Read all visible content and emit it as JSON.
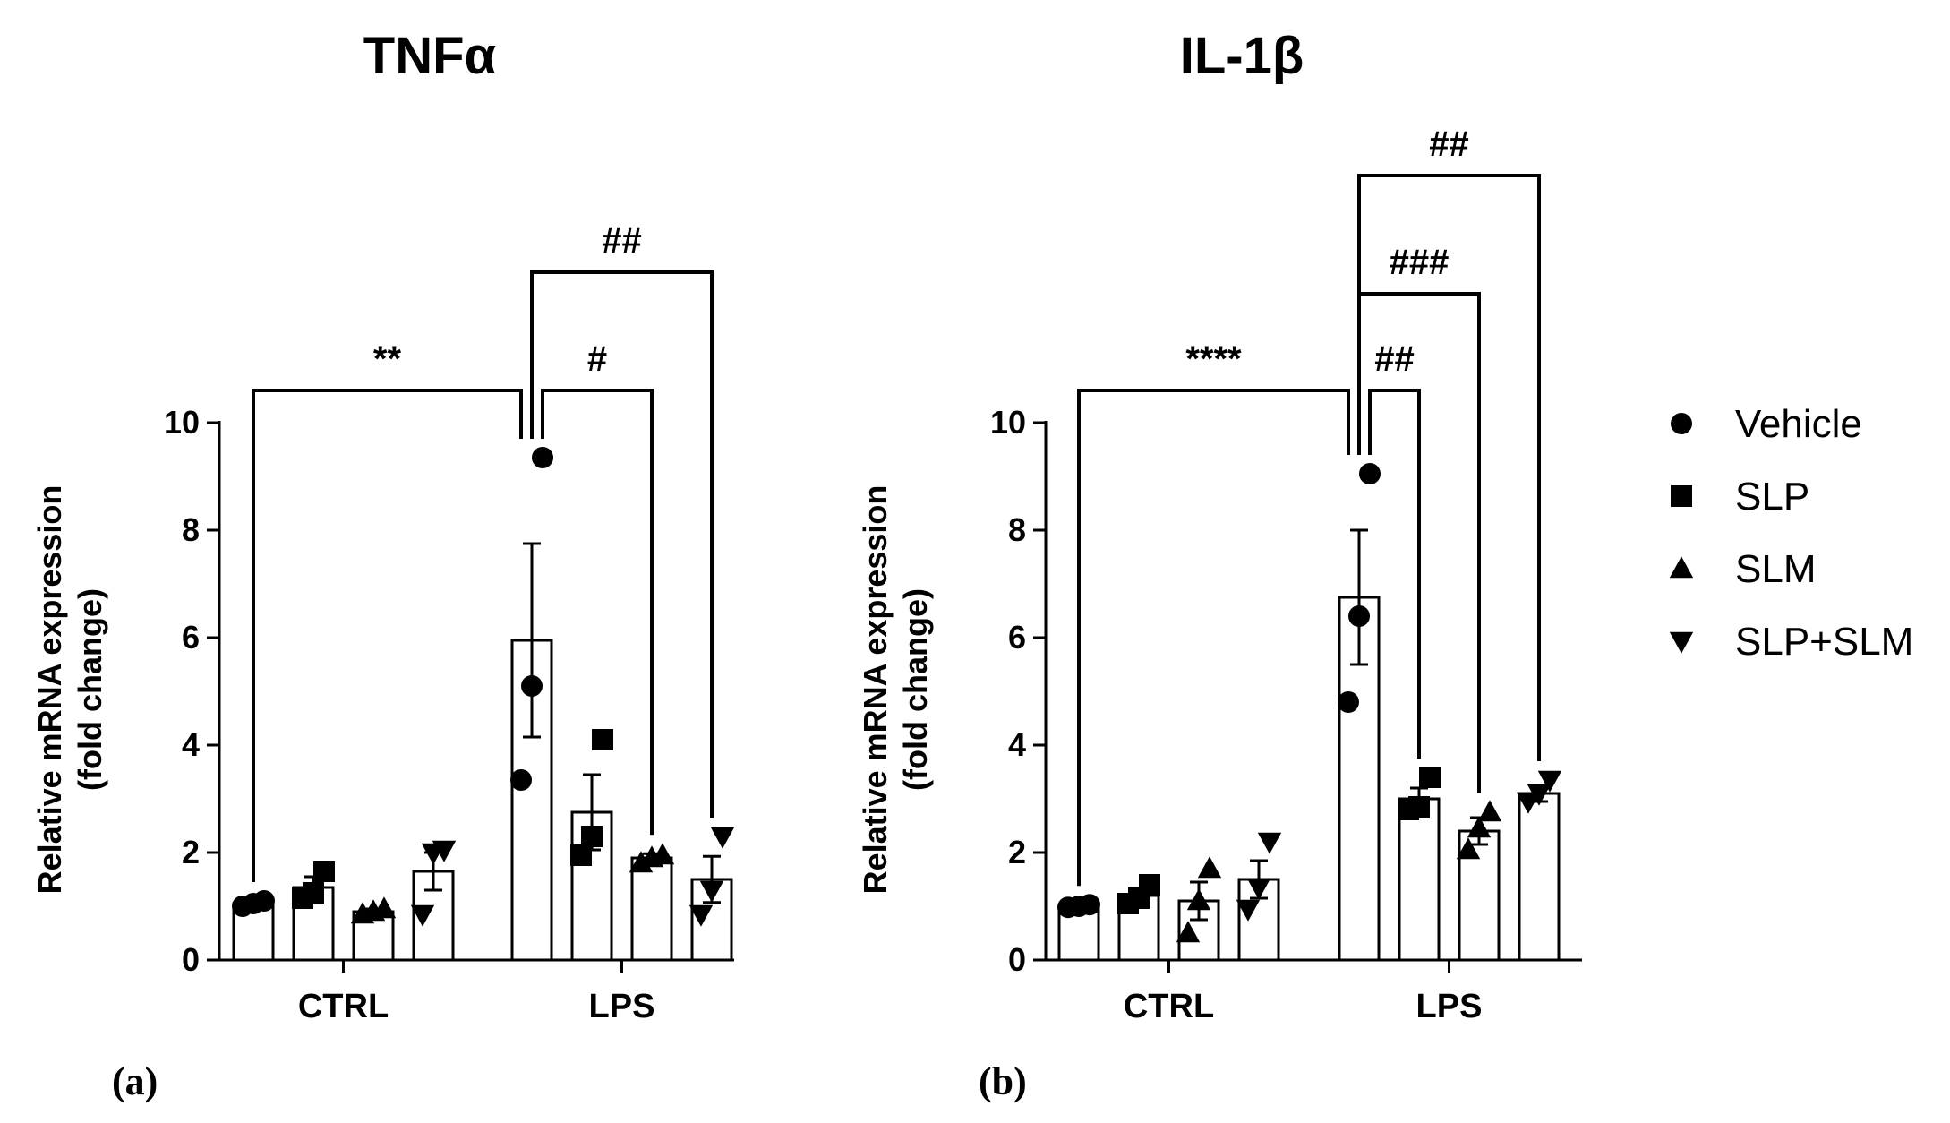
{
  "chart_data": [
    {
      "type": "bar",
      "title": "TNFα",
      "panel_label": "(a)",
      "ylabel_line1": "Relative mRNA expression",
      "ylabel_line2": "(fold change)",
      "ylim": [
        0,
        10
      ],
      "yticks": [
        "0",
        "2",
        "4",
        "6",
        "8",
        "10"
      ],
      "groups": [
        "CTRL",
        "LPS"
      ],
      "bars": [
        {
          "group": "CTRL",
          "series": "Vehicle",
          "mean": 1.05,
          "sem": 0.05,
          "points": [
            1.0,
            1.05,
            1.1
          ]
        },
        {
          "group": "CTRL",
          "series": "SLP",
          "mean": 1.35,
          "sem": 0.2,
          "points": [
            1.15,
            1.25,
            1.65
          ]
        },
        {
          "group": "CTRL",
          "series": "SLM",
          "mean": 0.9,
          "sem": 0.05,
          "points": [
            0.85,
            0.9,
            0.95
          ]
        },
        {
          "group": "CTRL",
          "series": "SLP+SLM",
          "mean": 1.65,
          "sem": 0.35,
          "points": [
            0.85,
            2.0,
            2.05
          ]
        },
        {
          "group": "LPS",
          "series": "Vehicle",
          "mean": 5.95,
          "sem": 1.8,
          "points": [
            3.35,
            5.1,
            9.35
          ]
        },
        {
          "group": "LPS",
          "series": "SLP",
          "mean": 2.75,
          "sem": 0.7,
          "points": [
            1.95,
            2.3,
            4.1
          ]
        },
        {
          "group": "LPS",
          "series": "SLM",
          "mean": 1.9,
          "sem": 0.08,
          "points": [
            1.8,
            1.9,
            1.95
          ]
        },
        {
          "group": "LPS",
          "series": "SLP+SLM",
          "mean": 1.5,
          "sem": 0.43,
          "points": [
            0.85,
            1.3,
            2.3
          ]
        }
      ],
      "significance": [
        {
          "label": "**",
          "from": "CTRL Vehicle",
          "to": "LPS Vehicle",
          "bracket_y": 10.6
        },
        {
          "label": "#",
          "from": "LPS Vehicle",
          "to": "LPS SLM",
          "bracket_y": 10.6
        },
        {
          "label": "##",
          "from": "LPS Vehicle",
          "to": "LPS SLP+SLM",
          "bracket_y": 12.8
        }
      ]
    },
    {
      "type": "bar",
      "title": "IL-1β",
      "panel_label": "(b)",
      "ylabel_line1": "Relative mRNA expression",
      "ylabel_line2": "(fold change)",
      "ylim": [
        0,
        10
      ],
      "yticks": [
        "0",
        "2",
        "4",
        "6",
        "8",
        "10"
      ],
      "groups": [
        "CTRL",
        "LPS"
      ],
      "bars": [
        {
          "group": "CTRL",
          "series": "Vehicle",
          "mean": 1.0,
          "sem": 0.03,
          "points": [
            0.98,
            1.0,
            1.03
          ]
        },
        {
          "group": "CTRL",
          "series": "SLP",
          "mean": 1.2,
          "sem": 0.12,
          "points": [
            1.05,
            1.15,
            1.4
          ]
        },
        {
          "group": "CTRL",
          "series": "SLM",
          "mean": 1.1,
          "sem": 0.35,
          "points": [
            0.5,
            1.1,
            1.7
          ]
        },
        {
          "group": "CTRL",
          "series": "SLP+SLM",
          "mean": 1.5,
          "sem": 0.35,
          "points": [
            0.95,
            1.35,
            2.2
          ]
        },
        {
          "group": "LPS",
          "series": "Vehicle",
          "mean": 6.75,
          "sem": 1.25,
          "points": [
            4.8,
            6.4,
            9.05
          ]
        },
        {
          "group": "LPS",
          "series": "SLP",
          "mean": 3.0,
          "sem": 0.2,
          "points": [
            2.8,
            2.85,
            3.4
          ]
        },
        {
          "group": "LPS",
          "series": "SLM",
          "mean": 2.4,
          "sem": 0.25,
          "points": [
            2.05,
            2.45,
            2.75
          ]
        },
        {
          "group": "LPS",
          "series": "SLP+SLM",
          "mean": 3.1,
          "sem": 0.15,
          "points": [
            2.95,
            3.1,
            3.35
          ]
        }
      ],
      "significance": [
        {
          "label": "****",
          "from": "CTRL Vehicle",
          "to": "LPS Vehicle",
          "bracket_y": 10.6
        },
        {
          "label": "##",
          "from": "LPS Vehicle",
          "to": "LPS SLP",
          "bracket_y": 10.6
        },
        {
          "label": "###",
          "from": "LPS Vehicle",
          "to": "LPS SLM",
          "bracket_y": 12.4
        },
        {
          "label": "##",
          "from": "LPS Vehicle",
          "to": "LPS SLP+SLM",
          "bracket_y": 14.6
        }
      ]
    }
  ],
  "legend": {
    "placement": "right",
    "items": [
      {
        "series": "Vehicle",
        "marker": "circle"
      },
      {
        "series": "SLP",
        "marker": "square"
      },
      {
        "series": "SLM",
        "marker": "triangle-up"
      },
      {
        "series": "SLP+SLM",
        "marker": "triangle-down"
      }
    ]
  },
  "colors": {
    "ink": "#000000",
    "bar_fill": "#ffffff"
  }
}
